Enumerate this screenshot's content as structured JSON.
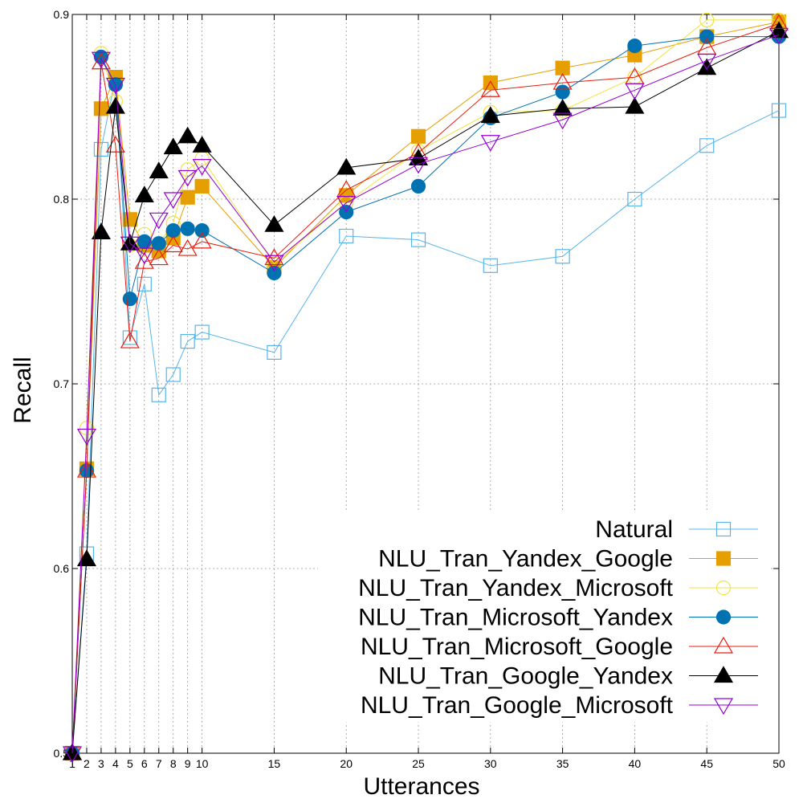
{
  "chart_data": {
    "type": "line",
    "title": "",
    "xlabel": "Utterances",
    "ylabel": "Recall",
    "x": [
      1,
      2,
      3,
      4,
      5,
      6,
      7,
      8,
      9,
      10,
      15,
      20,
      25,
      30,
      35,
      40,
      45,
      50
    ],
    "x_ticks": [
      "1",
      "2",
      "3",
      "4",
      "5",
      "6",
      "7",
      "8",
      "9",
      "10",
      "15",
      "20",
      "25",
      "30",
      "35",
      "40",
      "45",
      "50"
    ],
    "xlim": [
      1,
      50
    ],
    "ylim": [
      0.5,
      0.9
    ],
    "y_ticks": [
      "0.5",
      "0.6",
      "0.7",
      "0.8",
      "0.9"
    ],
    "grid": true,
    "legend_position": "bottom-right",
    "series": [
      {
        "name": "Natural",
        "color": "#56b4e9",
        "marker": "square-open",
        "values": [
          0.5,
          0.608,
          0.827,
          0.866,
          0.725,
          0.754,
          0.694,
          0.705,
          0.723,
          0.728,
          0.717,
          0.78,
          0.778,
          0.764,
          0.769,
          0.8,
          0.829,
          0.848
        ]
      },
      {
        "name": "NLU_Tran_Yandex_Google",
        "color": "#e69f00",
        "marker": "square-filled",
        "values": [
          0.5,
          0.654,
          0.849,
          0.866,
          0.789,
          0.775,
          0.772,
          0.779,
          0.801,
          0.807,
          0.763,
          0.802,
          0.834,
          0.863,
          0.871,
          0.878,
          0.888,
          0.896
        ]
      },
      {
        "name": "NLU_Tran_Yandex_Microsoft",
        "color": "#f0e442",
        "marker": "circle-open",
        "values": [
          0.5,
          0.676,
          0.879,
          0.853,
          0.775,
          0.781,
          0.776,
          0.787,
          0.816,
          0.822,
          0.765,
          0.798,
          0.826,
          0.847,
          0.848,
          0.866,
          0.897,
          0.897
        ]
      },
      {
        "name": "NLU_Tran_Microsoft_Yandex",
        "color": "#0072b2",
        "marker": "circle-filled",
        "values": [
          0.5,
          0.653,
          0.877,
          0.862,
          0.746,
          0.777,
          0.776,
          0.783,
          0.784,
          0.783,
          0.76,
          0.793,
          0.807,
          0.844,
          0.858,
          0.883,
          0.888,
          0.888
        ]
      },
      {
        "name": "NLU_Tran_Microsoft_Google",
        "color": "#e51e10",
        "marker": "triangle-up-open",
        "values": [
          0.5,
          0.653,
          0.874,
          0.829,
          0.723,
          0.766,
          0.768,
          0.775,
          0.773,
          0.777,
          0.768,
          0.805,
          0.825,
          0.859,
          0.863,
          0.866,
          0.882,
          0.895
        ]
      },
      {
        "name": "NLU_Tran_Google_Yandex",
        "color": "#000000",
        "marker": "triangle-up-filled",
        "values": [
          0.5,
          0.605,
          0.782,
          0.85,
          0.776,
          0.802,
          0.815,
          0.828,
          0.834,
          0.829,
          0.786,
          0.817,
          0.822,
          0.845,
          0.849,
          0.85,
          0.871,
          0.891
        ]
      },
      {
        "name": "NLU_Tran_Google_Microsoft",
        "color": "#9400d3",
        "marker": "triangle-down-open",
        "values": [
          0.5,
          0.672,
          0.876,
          0.862,
          0.776,
          0.77,
          0.789,
          0.8,
          0.812,
          0.818,
          0.766,
          0.798,
          0.819,
          0.831,
          0.843,
          0.859,
          0.875,
          0.889
        ]
      }
    ]
  }
}
